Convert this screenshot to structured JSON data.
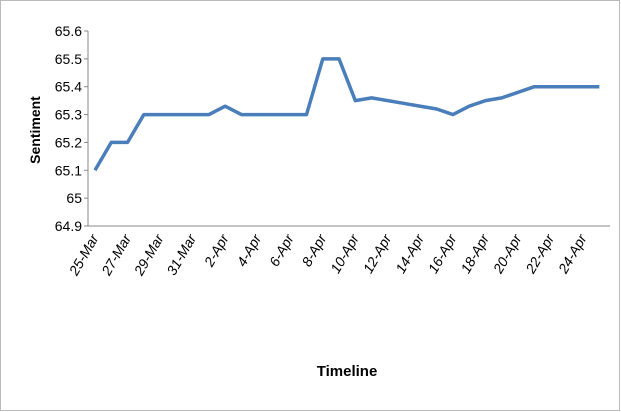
{
  "chart_data": {
    "type": "line",
    "x_label": "Timeline",
    "y_label": "Sentiment",
    "categories": [
      "25-Mar",
      null,
      "27-Mar",
      null,
      "29-Mar",
      null,
      "31-Mar",
      null,
      "2-Apr",
      null,
      "4-Apr",
      null,
      "6-Apr",
      null,
      "8-Apr",
      null,
      "10-Apr",
      null,
      "12-Apr",
      null,
      "14-Apr",
      null,
      "16-Apr",
      null,
      "18-Apr",
      null,
      "20-Apr",
      null,
      "22-Apr",
      null,
      "24-Apr",
      null
    ],
    "series": [
      {
        "name": "Sentiment",
        "color": "#4a7ebb",
        "values": [
          65.1,
          65.2,
          65.2,
          65.3,
          65.3,
          65.3,
          65.3,
          65.3,
          65.33,
          65.3,
          65.3,
          65.3,
          65.3,
          65.3,
          65.5,
          65.5,
          65.35,
          65.36,
          65.35,
          65.34,
          65.33,
          65.32,
          65.3,
          65.33,
          65.35,
          65.36,
          65.38,
          65.4,
          65.4,
          65.4,
          65.4,
          65.4
        ]
      }
    ],
    "ylim": [
      64.9,
      65.6
    ],
    "yticks": [
      64.9,
      65,
      65.1,
      65.2,
      65.3,
      65.4,
      65.5,
      65.6
    ],
    "grid": false
  }
}
